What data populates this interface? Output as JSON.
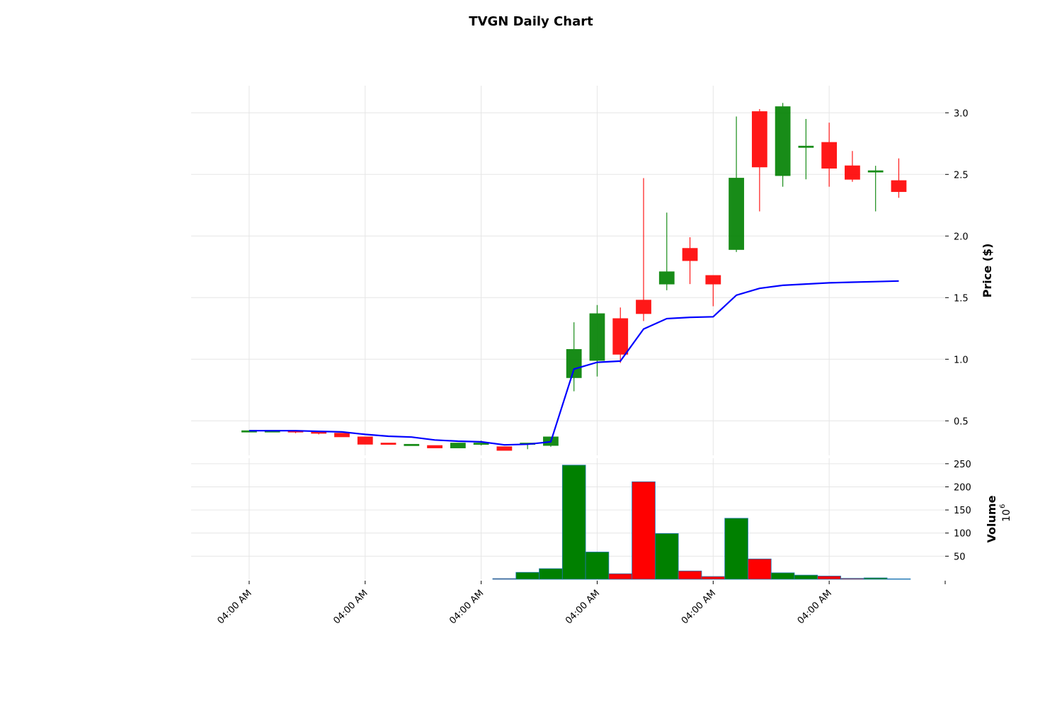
{
  "chart_data": {
    "type": "candlestick",
    "title": "TVGN Daily Chart",
    "price_axis": {
      "label": "Price ($)",
      "ylim": [
        0.22,
        3.22
      ],
      "ticks": [
        "0.5",
        "1.0",
        "1.5",
        "2.0",
        "2.5",
        "3.0"
      ],
      "tick_values": [
        0.5,
        1.0,
        1.5,
        2.0,
        2.5,
        3.0
      ]
    },
    "volume_axis": {
      "label": "Volume",
      "exponent_label": "10",
      "exponent": "6",
      "ylim": [
        0,
        262
      ],
      "ticks": [
        "50",
        "100",
        "150",
        "200",
        "250"
      ],
      "tick_values": [
        50,
        100,
        150,
        200,
        250
      ]
    },
    "x_ticks": [
      "04:00 AM",
      "04:00 AM",
      "04:00 AM",
      "04:00 AM",
      "04:00 AM",
      "04:00 AM"
    ],
    "x_tick_index": [
      0,
      5,
      10,
      15,
      20,
      25
    ],
    "x_range": [
      -2.5,
      30
    ],
    "up_color": "#008000",
    "down_color": "#ff0000",
    "ma_color": "#0000ff",
    "candles": [
      {
        "open": 0.42,
        "high": 0.42,
        "low": 0.42,
        "close": 0.42
      },
      {
        "open": 0.42,
        "high": 0.42,
        "low": 0.41,
        "close": 0.42
      },
      {
        "open": 0.42,
        "high": 0.42,
        "low": 0.4,
        "close": 0.41
      },
      {
        "open": 0.41,
        "high": 0.41,
        "low": 0.39,
        "close": 0.4
      },
      {
        "open": 0.4,
        "high": 0.4,
        "low": 0.37,
        "close": 0.37
      },
      {
        "open": 0.37,
        "high": 0.37,
        "low": 0.31,
        "close": 0.31
      },
      {
        "open": 0.32,
        "high": 0.32,
        "low": 0.31,
        "close": 0.31
      },
      {
        "open": 0.31,
        "high": 0.31,
        "low": 0.31,
        "close": 0.31
      },
      {
        "open": 0.3,
        "high": 0.3,
        "low": 0.28,
        "close": 0.28
      },
      {
        "open": 0.28,
        "high": 0.32,
        "low": 0.28,
        "close": 0.32
      },
      {
        "open": 0.31,
        "high": 0.34,
        "low": 0.3,
        "close": 0.32
      },
      {
        "open": 0.29,
        "high": 0.29,
        "low": 0.26,
        "close": 0.26
      },
      {
        "open": 0.31,
        "high": 0.32,
        "low": 0.27,
        "close": 0.32
      },
      {
        "open": 0.3,
        "high": 0.37,
        "low": 0.29,
        "close": 0.37
      },
      {
        "open": 0.85,
        "high": 1.3,
        "low": 0.74,
        "close": 1.08
      },
      {
        "open": 0.99,
        "high": 1.44,
        "low": 0.86,
        "close": 1.37
      },
      {
        "open": 1.33,
        "high": 1.42,
        "low": 0.97,
        "close": 1.04
      },
      {
        "open": 1.48,
        "high": 2.47,
        "low": 1.31,
        "close": 1.37
      },
      {
        "open": 1.61,
        "high": 2.19,
        "low": 1.56,
        "close": 1.71
      },
      {
        "open": 1.9,
        "high": 1.99,
        "low": 1.61,
        "close": 1.8
      },
      {
        "open": 1.68,
        "high": 1.68,
        "low": 1.43,
        "close": 1.61
      },
      {
        "open": 1.89,
        "high": 2.97,
        "low": 1.87,
        "close": 2.47
      },
      {
        "open": 3.01,
        "high": 3.03,
        "low": 2.2,
        "close": 2.56
      },
      {
        "open": 2.49,
        "high": 3.08,
        "low": 2.4,
        "close": 3.05
      },
      {
        "open": 2.72,
        "high": 2.95,
        "low": 2.46,
        "close": 2.73
      },
      {
        "open": 2.76,
        "high": 2.92,
        "low": 2.4,
        "close": 2.55
      },
      {
        "open": 2.57,
        "high": 2.69,
        "low": 2.44,
        "close": 2.46
      },
      {
        "open": 2.52,
        "high": 2.57,
        "low": 2.2,
        "close": 2.53
      },
      {
        "open": 2.45,
        "high": 2.63,
        "low": 2.31,
        "close": 2.36
      }
    ],
    "moving_average": [
      0.42,
      0.42,
      0.42,
      0.415,
      0.41,
      0.39,
      0.375,
      0.368,
      0.345,
      0.335,
      0.33,
      0.305,
      0.31,
      0.33,
      0.92,
      0.975,
      0.985,
      1.245,
      1.33,
      1.34,
      1.345,
      1.52,
      1.575,
      1.6,
      1.61,
      1.62,
      1.625,
      1.63,
      1.635
    ],
    "volume": [
      0,
      0,
      0,
      0,
      0,
      0,
      0,
      0,
      0,
      0,
      0,
      1.5,
      15,
      23,
      247,
      59,
      12,
      211,
      99,
      18,
      6,
      132,
      44,
      14,
      9,
      7,
      2,
      3,
      1
    ]
  }
}
